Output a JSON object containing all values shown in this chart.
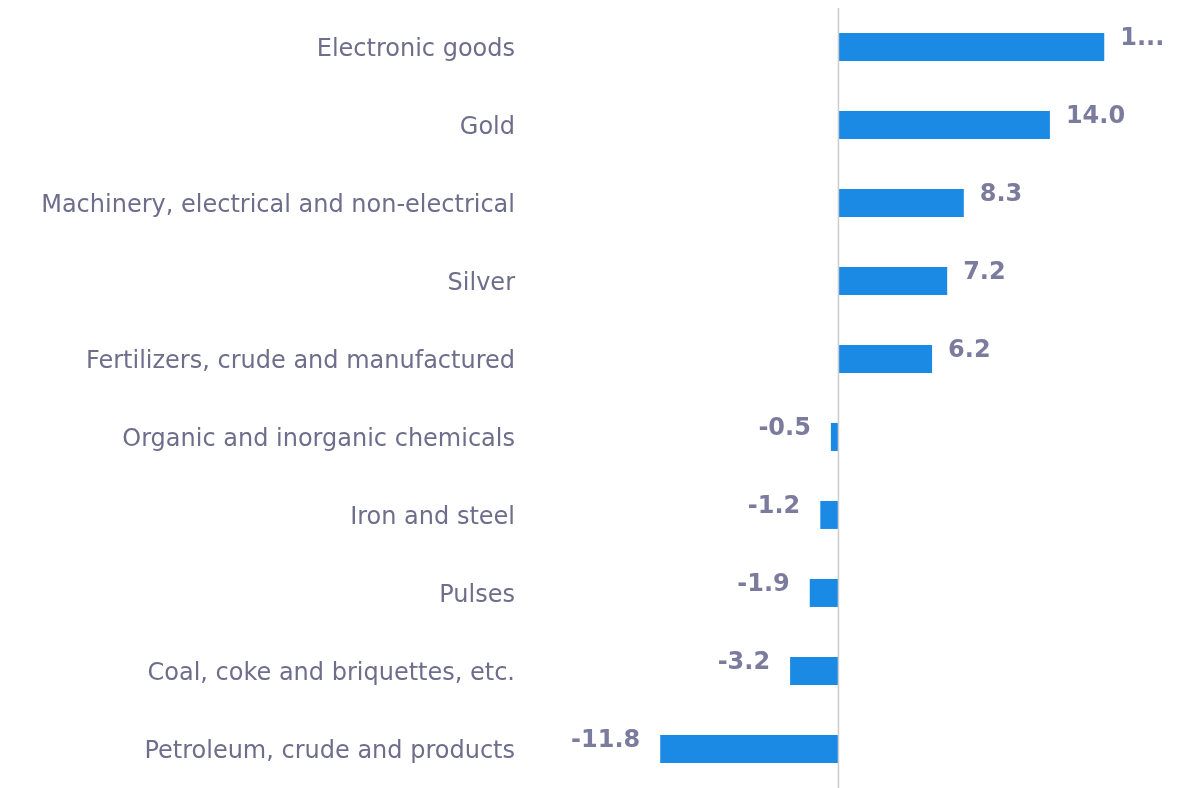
{
  "chart_data": {
    "type": "bar",
    "orientation": "horizontal",
    "categories": [
      "Electronic goods",
      "Gold",
      "Machinery, electrical and non-electrical",
      "Silver",
      "Fertilizers, crude and manufactured",
      "Organic and inorganic chemicals",
      "Iron and steel",
      "Pulses",
      "Coal, coke and briquettes, etc.",
      "Petroleum, crude and products"
    ],
    "values": [
      17.6,
      14.0,
      8.3,
      7.2,
      6.2,
      -0.5,
      -1.2,
      -1.9,
      -3.2,
      -11.8
    ],
    "value_labels": [
      "1...",
      "14.0",
      "8.3",
      "7.2",
      "6.2",
      "-0.5",
      "-1.2",
      "-1.9",
      "-3.2",
      "-11.8"
    ],
    "color": "#1a8ae5"
  }
}
